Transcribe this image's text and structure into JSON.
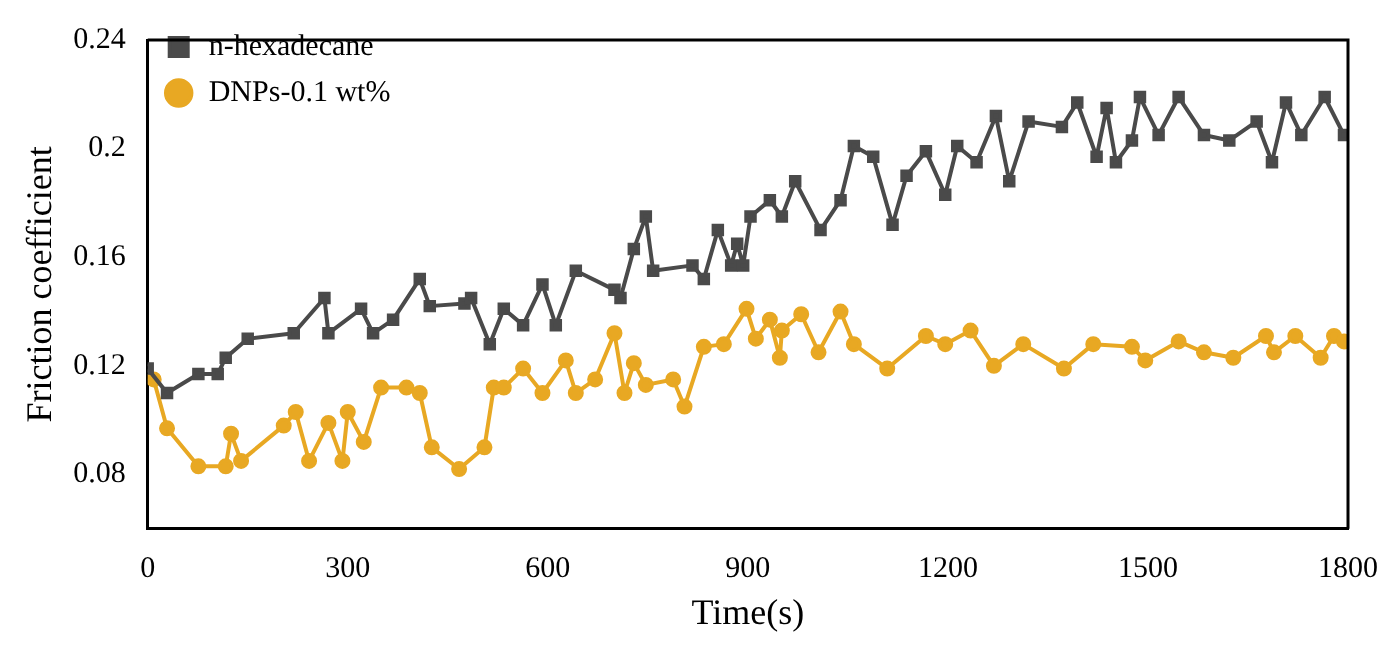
{
  "chart_data": {
    "type": "line",
    "xlabel": "Time(s)",
    "ylabel": "Friction coefficient",
    "xlim": [
      0,
      1800
    ],
    "xticks": [
      0,
      300,
      600,
      900,
      1200,
      1500,
      1800
    ],
    "ylim": [
      0.06,
      0.24
    ],
    "yticks": [
      0.08,
      0.12,
      0.16,
      0.2,
      0.24
    ],
    "legend": "top left",
    "grid": false,
    "line_style": "solid",
    "series": [
      {
        "name": "n-hexadecane",
        "color": "#4a4a4a",
        "marker": "square",
        "x": [
          0,
          29,
          76,
          105,
          117,
          150,
          219,
          265,
          271,
          320,
          338,
          368,
          408,
          423,
          475,
          485,
          513,
          534,
          563,
          592,
          612,
          642,
          700,
          709,
          729,
          747,
          758,
          817,
          834,
          855,
          875,
          884,
          893,
          904,
          933,
          951,
          971,
          1009,
          1039,
          1059,
          1088,
          1117,
          1138,
          1167,
          1196,
          1214,
          1243,
          1272,
          1292,
          1321,
          1371,
          1394,
          1423,
          1438,
          1452,
          1476,
          1488,
          1516,
          1546,
          1584,
          1622,
          1663,
          1686,
          1707,
          1730,
          1765,
          1794
        ],
        "values": [
          0.119,
          0.11,
          0.117,
          0.117,
          0.123,
          0.13,
          0.132,
          0.145,
          0.132,
          0.141,
          0.132,
          0.137,
          0.152,
          0.142,
          0.143,
          0.145,
          0.128,
          0.141,
          0.135,
          0.15,
          0.135,
          0.155,
          0.148,
          0.145,
          0.163,
          0.175,
          0.155,
          0.157,
          0.152,
          0.17,
          0.157,
          0.165,
          0.157,
          0.175,
          0.181,
          0.175,
          0.188,
          0.17,
          0.181,
          0.201,
          0.197,
          0.172,
          0.19,
          0.199,
          0.183,
          0.201,
          0.195,
          0.212,
          0.188,
          0.21,
          0.208,
          0.217,
          0.197,
          0.215,
          0.195,
          0.203,
          0.219,
          0.205,
          0.219,
          0.205,
          0.203,
          0.21,
          0.195,
          0.217,
          0.205,
          0.219,
          0.205
        ]
      },
      {
        "name": "DNPs-0.1 wt%",
        "color": "#e8a823",
        "marker": "circle",
        "x": [
          9,
          29,
          76,
          117,
          125,
          140,
          204,
          222,
          242,
          271,
          292,
          300,
          324,
          350,
          388,
          408,
          426,
          467,
          505,
          519,
          534,
          563,
          592,
          627,
          642,
          671,
          700,
          715,
          729,
          747,
          788,
          805,
          834,
          864,
          898,
          912,
          933,
          948,
          951,
          980,
          1006,
          1039,
          1059,
          1109,
          1167,
          1196,
          1234,
          1269,
          1313,
          1374,
          1418,
          1476,
          1496,
          1546,
          1584,
          1628,
          1677,
          1689,
          1721,
          1759,
          1779,
          1794
        ],
        "values": [
          0.115,
          0.097,
          0.083,
          0.083,
          0.095,
          0.085,
          0.098,
          0.103,
          0.085,
          0.099,
          0.085,
          0.103,
          0.092,
          0.112,
          0.112,
          0.11,
          0.09,
          0.082,
          0.09,
          0.112,
          0.112,
          0.119,
          0.11,
          0.122,
          0.11,
          0.115,
          0.132,
          0.11,
          0.121,
          0.113,
          0.115,
          0.105,
          0.127,
          0.128,
          0.141,
          0.13,
          0.137,
          0.123,
          0.133,
          0.139,
          0.125,
          0.14,
          0.128,
          0.119,
          0.131,
          0.128,
          0.133,
          0.12,
          0.128,
          0.119,
          0.128,
          0.127,
          0.122,
          0.129,
          0.125,
          0.123,
          0.131,
          0.125,
          0.131,
          0.123,
          0.131,
          0.129
        ]
      }
    ]
  }
}
